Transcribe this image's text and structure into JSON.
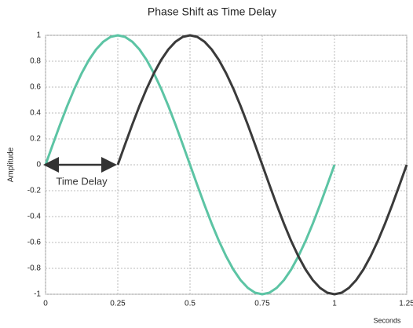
{
  "chart_data": {
    "type": "line",
    "title": "Phase Shift as Time Delay",
    "xlabel": "Seconds",
    "ylabel": "Amplitude",
    "annotation": "Time Delay",
    "x": [
      0,
      0.025,
      0.05,
      0.075,
      0.1,
      0.125,
      0.15,
      0.175,
      0.2,
      0.225,
      0.25,
      0.275,
      0.3,
      0.325,
      0.35,
      0.375,
      0.4,
      0.425,
      0.45,
      0.475,
      0.5,
      0.525,
      0.55,
      0.575,
      0.6,
      0.625,
      0.65,
      0.675,
      0.7,
      0.725,
      0.75,
      0.775,
      0.8,
      0.825,
      0.85,
      0.875,
      0.9,
      0.925,
      0.95,
      0.975,
      1,
      1.025,
      1.05,
      1.075,
      1.1,
      1.125,
      1.15,
      1.175,
      1.2,
      1.225,
      1.25
    ],
    "series": [
      {
        "color": "#5cc4a4",
        "values": [
          0,
          0.156,
          0.309,
          0.454,
          0.588,
          0.707,
          0.809,
          0.891,
          0.951,
          0.988,
          1,
          0.988,
          0.951,
          0.891,
          0.809,
          0.707,
          0.588,
          0.454,
          0.309,
          0.156,
          0,
          -0.156,
          -0.309,
          -0.454,
          -0.588,
          -0.707,
          -0.809,
          -0.891,
          -0.951,
          -0.988,
          -1,
          -0.988,
          -0.951,
          -0.891,
          -0.809,
          -0.707,
          -0.588,
          -0.454,
          -0.309,
          -0.156,
          0,
          null,
          null,
          null,
          null,
          null,
          null,
          null,
          null,
          null,
          null
        ]
      },
      {
        "color": "#3a3a3a",
        "values": [
          null,
          null,
          null,
          null,
          null,
          null,
          null,
          null,
          null,
          null,
          0,
          0.156,
          0.309,
          0.454,
          0.588,
          0.707,
          0.809,
          0.891,
          0.951,
          0.988,
          1,
          0.988,
          0.951,
          0.891,
          0.809,
          0.707,
          0.588,
          0.454,
          0.309,
          0.156,
          0,
          -0.156,
          -0.309,
          -0.454,
          -0.588,
          -0.707,
          -0.809,
          -0.891,
          -0.951,
          -0.988,
          -1,
          -0.988,
          -0.951,
          -0.891,
          -0.809,
          -0.707,
          -0.588,
          -0.454,
          -0.309,
          -0.156,
          0
        ]
      }
    ],
    "xlim": [
      0,
      1.25
    ],
    "xticks": [
      0,
      0.25,
      0.5,
      0.75,
      1,
      1.25
    ],
    "ylim": [
      -1,
      1
    ],
    "yticks": [
      -1,
      -0.8,
      -0.6,
      -0.4,
      -0.2,
      0,
      0.2,
      0.4,
      0.6,
      0.8,
      1
    ],
    "grid": true
  }
}
